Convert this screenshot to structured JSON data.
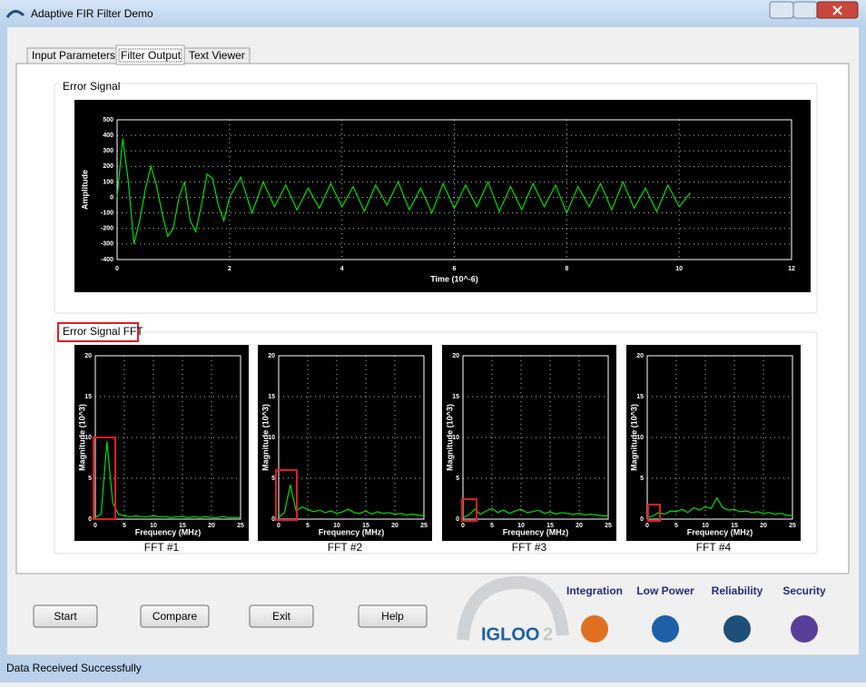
{
  "window": {
    "title": "Adaptive FIR Filter Demo"
  },
  "tabs": [
    "Input Parameters",
    "Filter Output",
    "Text Viewer"
  ],
  "active_tab": "Filter Output",
  "error_signal": {
    "group_title": "Error Signal",
    "chart_data": {
      "type": "line",
      "xlabel": "Time (10^-6)",
      "ylabel": "Amplitude",
      "color": "#00e000",
      "grid": true,
      "xlim": [
        0,
        12
      ],
      "xticks": [
        0,
        2,
        4,
        6,
        8,
        10,
        12
      ],
      "ylim": [
        -400,
        500
      ],
      "yticks": [
        -400,
        -300,
        -200,
        -100,
        0,
        100,
        200,
        300,
        400,
        500
      ],
      "x": [
        0,
        0.1,
        0.2,
        0.3,
        0.4,
        0.5,
        0.6,
        0.7,
        0.8,
        0.9,
        1.0,
        1.1,
        1.2,
        1.3,
        1.4,
        1.5,
        1.6,
        1.7,
        1.8,
        1.9,
        2.0,
        2.2,
        2.4,
        2.6,
        2.8,
        3.0,
        3.2,
        3.4,
        3.6,
        3.8,
        4.0,
        4.2,
        4.4,
        4.6,
        4.8,
        5.0,
        5.2,
        5.4,
        5.6,
        5.8,
        6.0,
        6.2,
        6.4,
        6.6,
        6.8,
        7.0,
        7.2,
        7.4,
        7.6,
        7.8,
        8.0,
        8.2,
        8.4,
        8.6,
        8.8,
        9.0,
        9.2,
        9.4,
        9.6,
        9.8,
        10.0,
        10.2
      ],
      "values": [
        0,
        380,
        100,
        -300,
        -150,
        50,
        200,
        80,
        -100,
        -250,
        -200,
        0,
        100,
        -150,
        -220,
        -50,
        150,
        120,
        -50,
        -150,
        0,
        130,
        -100,
        100,
        -60,
        80,
        -80,
        60,
        -70,
        90,
        -60,
        70,
        -90,
        80,
        -50,
        100,
        -80,
        60,
        -100,
        90,
        -70,
        80,
        -60,
        100,
        -90,
        70,
        -80,
        90,
        -60,
        80,
        -100,
        70,
        -60,
        90,
        -80,
        100,
        -70,
        60,
        -90,
        80,
        -60,
        30
      ]
    }
  },
  "fft": {
    "group_title": "Error Signal FFT",
    "charts": [
      {
        "label": "FFT #1",
        "chart_data": {
          "type": "line",
          "xlabel": "Frequency (MHz)",
          "ylabel": "Magnitude (10^3)",
          "color": "#00e000",
          "grid": true,
          "xlim": [
            0,
            25
          ],
          "xticks": [
            0,
            5,
            10,
            15,
            20,
            25
          ],
          "ylim": [
            0,
            20
          ],
          "yticks": [
            0,
            5,
            10,
            15,
            20
          ],
          "x": [
            0,
            1,
            2,
            3,
            4,
            5,
            6,
            7,
            8,
            9,
            10,
            11,
            12,
            13,
            14,
            15,
            16,
            17,
            18,
            19,
            20,
            21,
            22,
            23,
            24,
            25
          ],
          "values": [
            0.2,
            0.6,
            9.5,
            2,
            0.6,
            0.4,
            0.3,
            0.4,
            0.3,
            0.3,
            0.4,
            0.3,
            0.3,
            0.2,
            0.3,
            0.3,
            0.2,
            0.3,
            0.2,
            0.3,
            0.2,
            0.2,
            0.3,
            0.2,
            0.2,
            0.2
          ]
        }
      },
      {
        "label": "FFT #2",
        "chart_data": {
          "type": "line",
          "xlabel": "Frequency (MHz)",
          "ylabel": "Magnitude (10^3)",
          "color": "#00e000",
          "grid": true,
          "xlim": [
            0,
            25
          ],
          "xticks": [
            0,
            5,
            10,
            15,
            20,
            25
          ],
          "ylim": [
            0,
            20
          ],
          "yticks": [
            0,
            5,
            10,
            15,
            20
          ],
          "x": [
            0,
            1,
            2,
            3,
            4,
            5,
            6,
            7,
            8,
            9,
            10,
            11,
            12,
            13,
            14,
            15,
            16,
            17,
            18,
            19,
            20,
            21,
            22,
            23,
            24,
            25
          ],
          "values": [
            0.2,
            0.8,
            4.2,
            1,
            1.5,
            1.2,
            0.9,
            1.1,
            0.8,
            1,
            0.7,
            0.9,
            1.2,
            0.8,
            0.7,
            1,
            0.6,
            0.9,
            0.7,
            0.8,
            0.6,
            0.7,
            0.5,
            0.6,
            0.5,
            0.4
          ]
        }
      },
      {
        "label": "FFT #3",
        "chart_data": {
          "type": "line",
          "xlabel": "Frequency (MHz)",
          "ylabel": "Magnitude (10^3)",
          "color": "#00e000",
          "grid": true,
          "xlim": [
            0,
            25
          ],
          "xticks": [
            0,
            5,
            10,
            15,
            20,
            25
          ],
          "ylim": [
            0,
            20
          ],
          "yticks": [
            0,
            5,
            10,
            15,
            20
          ],
          "x": [
            0,
            1,
            2,
            3,
            4,
            5,
            6,
            7,
            8,
            9,
            10,
            11,
            12,
            13,
            14,
            15,
            16,
            17,
            18,
            19,
            20,
            21,
            22,
            23,
            24,
            25
          ],
          "values": [
            0.2,
            0.5,
            1.2,
            0.6,
            1,
            1.3,
            0.8,
            1.1,
            0.7,
            1,
            1.2,
            0.8,
            0.9,
            1.1,
            0.7,
            0.9,
            0.6,
            0.8,
            0.7,
            0.6,
            0.7,
            0.5,
            0.6,
            0.5,
            0.4,
            0.4
          ]
        }
      },
      {
        "label": "FFT #4",
        "chart_data": {
          "type": "line",
          "xlabel": "Frequency (MHz)",
          "ylabel": "Magnitude (10^3)",
          "color": "#00e000",
          "grid": true,
          "xlim": [
            0,
            25
          ],
          "xticks": [
            0,
            5,
            10,
            15,
            20,
            25
          ],
          "ylim": [
            0,
            20
          ],
          "yticks": [
            0,
            5,
            10,
            15,
            20
          ],
          "x": [
            0,
            1,
            2,
            3,
            4,
            5,
            6,
            7,
            8,
            9,
            10,
            11,
            12,
            13,
            14,
            15,
            16,
            17,
            18,
            19,
            20,
            21,
            22,
            23,
            24,
            25
          ],
          "values": [
            0.2,
            0.4,
            0.8,
            0.6,
            1,
            0.9,
            1.2,
            0.8,
            1.4,
            1.1,
            1.5,
            1.3,
            2.6,
            1.4,
            1.1,
            1.2,
            0.9,
            1,
            0.8,
            0.9,
            0.7,
            0.8,
            0.6,
            0.7,
            0.5,
            0.4
          ]
        }
      }
    ]
  },
  "buttons": [
    "Start",
    "Compare",
    "Exit",
    "Help"
  ],
  "logo": {
    "text": "IGLOO",
    "suffix": "2"
  },
  "features": [
    "Integration",
    "Low Power",
    "Reliability",
    "Security"
  ],
  "status": "Data Received Successfully"
}
